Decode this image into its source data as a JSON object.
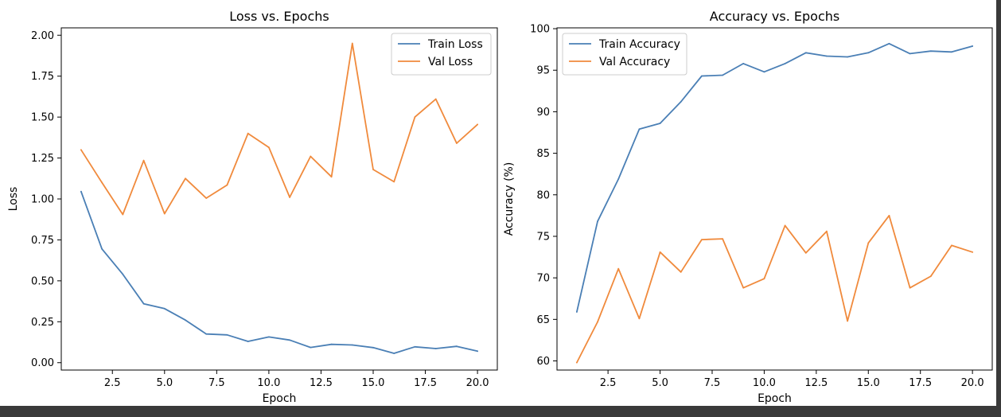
{
  "chart_data": [
    {
      "type": "line",
      "title": "Loss vs. Epochs",
      "xlabel": "Epoch",
      "ylabel": "Loss",
      "xlim": [
        0.05,
        20.95
      ],
      "ylim": [
        -0.045,
        2.045
      ],
      "xticks": [
        2.5,
        5.0,
        7.5,
        10.0,
        12.5,
        15.0,
        17.5,
        20.0
      ],
      "xtick_labels": [
        "2.5",
        "5.0",
        "7.5",
        "10.0",
        "12.5",
        "15.0",
        "17.5",
        "20.0"
      ],
      "yticks": [
        0.0,
        0.25,
        0.5,
        0.75,
        1.0,
        1.25,
        1.5,
        1.75,
        2.0
      ],
      "ytick_labels": [
        "0.00",
        "0.25",
        "0.50",
        "0.75",
        "1.00",
        "1.25",
        "1.50",
        "1.75",
        "2.00"
      ],
      "grid": false,
      "legend_position": "top-right",
      "x": [
        1,
        2,
        3,
        4,
        5,
        6,
        7,
        8,
        9,
        10,
        11,
        12,
        13,
        14,
        15,
        16,
        17,
        18,
        19,
        20
      ],
      "series": [
        {
          "name": "Train Loss",
          "color": "#4a7fb5",
          "values": [
            1.045,
            0.695,
            0.54,
            0.36,
            0.33,
            0.26,
            0.175,
            0.17,
            0.13,
            0.157,
            0.138,
            0.093,
            0.112,
            0.108,
            0.092,
            0.057,
            0.097,
            0.086,
            0.1,
            0.07
          ]
        },
        {
          "name": "Val Loss",
          "color": "#f08a3c",
          "values": [
            1.3,
            1.1,
            0.905,
            1.235,
            0.91,
            1.125,
            1.005,
            1.085,
            1.4,
            1.315,
            1.01,
            1.26,
            1.135,
            1.95,
            1.18,
            1.105,
            1.5,
            1.61,
            1.34,
            1.455
          ]
        }
      ]
    },
    {
      "type": "line",
      "title": "Accuracy vs. Epochs",
      "xlabel": "Epoch",
      "ylabel": "Accuracy (%)",
      "xlim": [
        0.05,
        20.95
      ],
      "ylim": [
        58.9,
        100.1
      ],
      "xticks": [
        2.5,
        5.0,
        7.5,
        10.0,
        12.5,
        15.0,
        17.5,
        20.0
      ],
      "xtick_labels": [
        "2.5",
        "5.0",
        "7.5",
        "10.0",
        "12.5",
        "15.0",
        "17.5",
        "20.0"
      ],
      "yticks": [
        60,
        65,
        70,
        75,
        80,
        85,
        90,
        95,
        100
      ],
      "ytick_labels": [
        "60",
        "65",
        "70",
        "75",
        "80",
        "85",
        "90",
        "95",
        "100"
      ],
      "grid": false,
      "legend_position": "top-left",
      "x": [
        1,
        2,
        3,
        4,
        5,
        6,
        7,
        8,
        9,
        10,
        11,
        12,
        13,
        14,
        15,
        16,
        17,
        18,
        19,
        20
      ],
      "series": [
        {
          "name": "Train Accuracy",
          "color": "#4a7fb5",
          "values": [
            65.9,
            76.8,
            81.9,
            87.9,
            88.6,
            91.2,
            94.3,
            94.4,
            95.8,
            94.8,
            95.8,
            97.1,
            96.7,
            96.6,
            97.1,
            98.2,
            97.0,
            97.3,
            97.2,
            97.9
          ]
        },
        {
          "name": "Val Accuracy",
          "color": "#f08a3c",
          "values": [
            59.8,
            64.7,
            71.1,
            65.1,
            73.1,
            70.7,
            74.6,
            74.7,
            68.8,
            69.9,
            76.3,
            73.0,
            75.6,
            64.8,
            74.2,
            77.5,
            68.8,
            70.2,
            73.9,
            73.1
          ]
        }
      ]
    }
  ]
}
